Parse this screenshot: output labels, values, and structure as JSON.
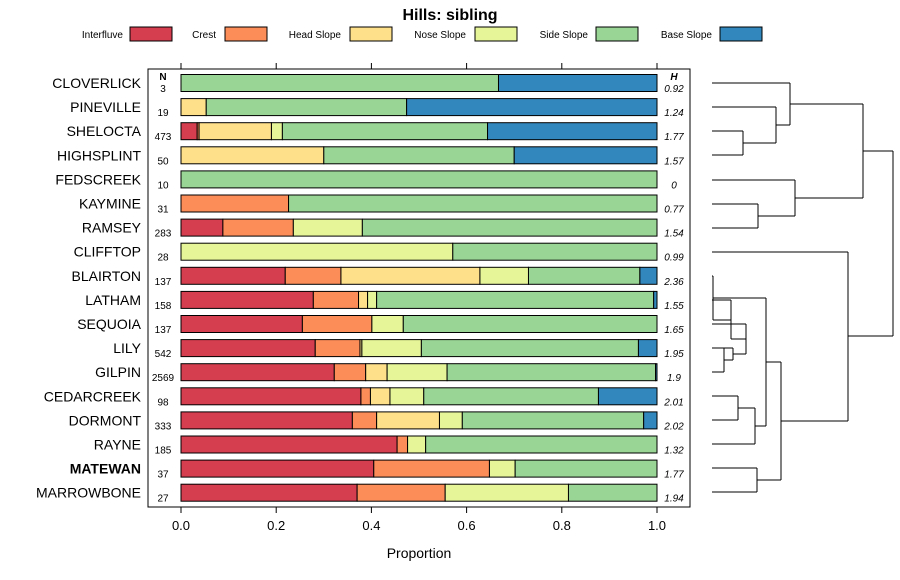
{
  "chart_data": {
    "type": "bar",
    "orientation": "horizontal",
    "stacked": true,
    "title": "Hills: sibling",
    "xlabel": "Proportion",
    "ylabel": "",
    "xlim": [
      0,
      1
    ],
    "xticks": [
      "0.0",
      "0.2",
      "0.4",
      "0.6",
      "0.8",
      "1.0"
    ],
    "n_header": "N",
    "h_header": "H",
    "categories_legend": [
      {
        "name": "Interfluve",
        "color": "#d53e4f"
      },
      {
        "name": "Crest",
        "color": "#fc8d59"
      },
      {
        "name": "Head Slope",
        "color": "#fee08b"
      },
      {
        "name": "Nose Slope",
        "color": "#e6f598"
      },
      {
        "name": "Side Slope",
        "color": "#99d594"
      },
      {
        "name": "Base Slope",
        "color": "#3288bd"
      }
    ],
    "rows": [
      {
        "name": "CLOVERLICK",
        "n": "3",
        "h": "0.92",
        "bold": false,
        "values": [
          0,
          0,
          0,
          0,
          0.667,
          0.333
        ]
      },
      {
        "name": "PINEVILLE",
        "n": "19",
        "h": "1.24",
        "bold": false,
        "values": [
          0,
          0,
          0.053,
          0,
          0.421,
          0.526
        ]
      },
      {
        "name": "SHELOCTA",
        "n": "473",
        "h": "1.77",
        "bold": false,
        "values": [
          0.034,
          0.004,
          0.152,
          0.023,
          0.431,
          0.356
        ]
      },
      {
        "name": "HIGHSPLINT",
        "n": "50",
        "h": "1.57",
        "bold": false,
        "values": [
          0,
          0,
          0.3,
          0,
          0.4,
          0.3
        ]
      },
      {
        "name": "FEDSCREEK",
        "n": "10",
        "h": "0",
        "bold": false,
        "values": [
          0,
          0,
          0,
          0,
          1.0,
          0
        ]
      },
      {
        "name": "KAYMINE",
        "n": "31",
        "h": "0.77",
        "bold": false,
        "values": [
          0,
          0.226,
          0,
          0,
          0.774,
          0
        ]
      },
      {
        "name": "RAMSEY",
        "n": "283",
        "h": "1.54",
        "bold": false,
        "values": [
          0.088,
          0.148,
          0,
          0.145,
          0.619,
          0
        ]
      },
      {
        "name": "CLIFFTOP",
        "n": "28",
        "h": "0.99",
        "bold": false,
        "values": [
          0,
          0,
          0,
          0.571,
          0.429,
          0
        ]
      },
      {
        "name": "BLAIRTON",
        "n": "137",
        "h": "2.36",
        "bold": false,
        "values": [
          0.219,
          0.117,
          0.292,
          0.102,
          0.234,
          0.036
        ]
      },
      {
        "name": "LATHAM",
        "n": "158",
        "h": "1.55",
        "bold": false,
        "values": [
          0.278,
          0.095,
          0.019,
          0.019,
          0.582,
          0.007
        ]
      },
      {
        "name": "SEQUOIA",
        "n": "137",
        "h": "1.65",
        "bold": false,
        "values": [
          0.255,
          0.146,
          0,
          0.066,
          0.533,
          0
        ]
      },
      {
        "name": "LILY",
        "n": "542",
        "h": "1.95",
        "bold": false,
        "values": [
          0.282,
          0.094,
          0.004,
          0.125,
          0.456,
          0.039
        ]
      },
      {
        "name": "GILPIN",
        "n": "2569",
        "h": "1.9",
        "bold": false,
        "values": [
          0.322,
          0.066,
          0.045,
          0.126,
          0.438,
          0.003
        ]
      },
      {
        "name": "CEDARCREEK",
        "n": "98",
        "h": "2.01",
        "bold": false,
        "values": [
          0.378,
          0.02,
          0.041,
          0.071,
          0.367,
          0.123
        ]
      },
      {
        "name": "DORMONT",
        "n": "333",
        "h": "2.02",
        "bold": false,
        "values": [
          0.36,
          0.051,
          0.132,
          0.048,
          0.381,
          0.028
        ]
      },
      {
        "name": "RAYNE",
        "n": "185",
        "h": "1.32",
        "bold": false,
        "values": [
          0.454,
          0.022,
          0,
          0.038,
          0.486,
          0
        ]
      },
      {
        "name": "MATEWAN",
        "n": "37",
        "h": "1.77",
        "bold": true,
        "values": [
          0.405,
          0.243,
          0,
          0.054,
          0.298,
          0
        ]
      },
      {
        "name": "MARROWBONE",
        "n": "27",
        "h": "1.94",
        "bold": false,
        "values": [
          0.37,
          0.185,
          0,
          0.259,
          0.186,
          0
        ]
      }
    ]
  }
}
